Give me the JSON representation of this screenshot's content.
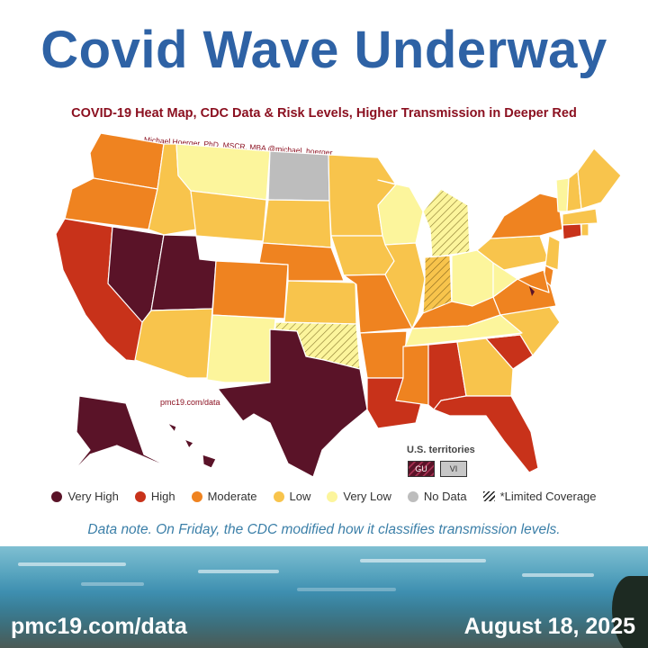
{
  "headline": "Covid Wave Underway",
  "map_title": "COVID-19 Heat Map, CDC Data & Risk Levels, Higher Transmission in Deeper Red",
  "credit": "Michael Hoerger, PhD, MSCR, MBA @michael_hoerger",
  "map_url": "pmc19.com/data",
  "territories": {
    "title": "U.S. territories",
    "items": [
      {
        "code": "GU",
        "level": "very-high-hatched"
      },
      {
        "code": "VI",
        "level": "no-data"
      }
    ]
  },
  "colors": {
    "very_high": "#5a1328",
    "high": "#c8321a",
    "moderate": "#ef8320",
    "low": "#f8c44c",
    "very_low": "#fcf59c",
    "no_data": "#bdbdbd",
    "headline": "#2e62a5",
    "subtitle": "#8b1020"
  },
  "legend": [
    {
      "label": "Very High",
      "level": "very_high"
    },
    {
      "label": "High",
      "level": "high"
    },
    {
      "label": "Moderate",
      "level": "moderate"
    },
    {
      "label": "Low",
      "level": "low"
    },
    {
      "label": "Very Low",
      "level": "very_low"
    },
    {
      "label": "No Data",
      "level": "no_data"
    },
    {
      "label": "*Limited Coverage",
      "level": "limited_coverage"
    }
  ],
  "states": {
    "WA": {
      "level": "moderate"
    },
    "OR": {
      "level": "moderate"
    },
    "CA": {
      "level": "high"
    },
    "NV": {
      "level": "very_high"
    },
    "UT": {
      "level": "very_high"
    },
    "ID": {
      "level": "low"
    },
    "MT": {
      "level": "very_low"
    },
    "WY": {
      "level": "low"
    },
    "CO": {
      "level": "moderate"
    },
    "AZ": {
      "level": "low"
    },
    "NM": {
      "level": "very_low"
    },
    "TX": {
      "level": "very_high"
    },
    "OK": {
      "level": "very_low",
      "limited": true
    },
    "KS": {
      "level": "low"
    },
    "NE": {
      "level": "moderate"
    },
    "SD": {
      "level": "low"
    },
    "ND": {
      "level": "no_data"
    },
    "MN": {
      "level": "low"
    },
    "IA": {
      "level": "low"
    },
    "MO": {
      "level": "moderate"
    },
    "AR": {
      "level": "moderate"
    },
    "LA": {
      "level": "high"
    },
    "WI": {
      "level": "very_low"
    },
    "IL": {
      "level": "low"
    },
    "MI": {
      "level": "very_low",
      "limited": true
    },
    "IN": {
      "level": "low",
      "limited": true
    },
    "OH": {
      "level": "very_low"
    },
    "KY": {
      "level": "moderate"
    },
    "TN": {
      "level": "very_low"
    },
    "MS": {
      "level": "moderate"
    },
    "AL": {
      "level": "high"
    },
    "GA": {
      "level": "low"
    },
    "FL": {
      "level": "high"
    },
    "SC": {
      "level": "high"
    },
    "NC": {
      "level": "low"
    },
    "VA": {
      "level": "moderate"
    },
    "WV": {
      "level": "very_low"
    },
    "PA": {
      "level": "low"
    },
    "NY": {
      "level": "moderate"
    },
    "VT": {
      "level": "very_low"
    },
    "NH": {
      "level": "low"
    },
    "ME": {
      "level": "low"
    },
    "MA": {
      "level": "low"
    },
    "CT": {
      "level": "high"
    },
    "RI": {
      "level": "low"
    },
    "NJ": {
      "level": "low"
    },
    "DE": {
      "level": "moderate"
    },
    "MD": {
      "level": "moderate"
    },
    "AK": {
      "level": "very_high"
    },
    "HI": {
      "level": "very_high"
    }
  },
  "data_note": "Data note. On Friday, the CDC modified how it classifies transmission levels.",
  "footer": {
    "url": "pmc19.com/data",
    "date": "August 18, 2025"
  }
}
